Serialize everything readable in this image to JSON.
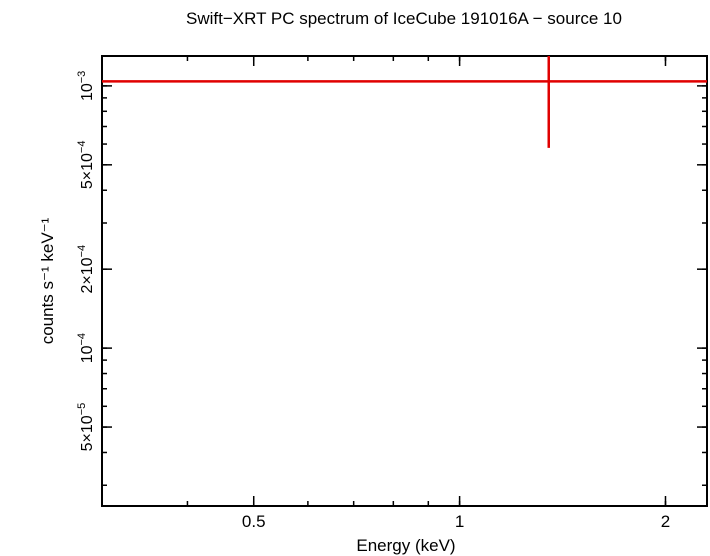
{
  "chart_data": {
    "type": "scatter",
    "title": "Swift−XRT PC spectrum of IceCube 191016A − source 10",
    "xlabel": "Energy (keV)",
    "ylabel": "counts s⁻¹ keV⁻¹",
    "x_scale": "log",
    "y_scale": "log",
    "xlim": [
      0.3,
      2.3
    ],
    "ylim": [
      2.5e-05,
      0.0013
    ],
    "x_ticks": [
      {
        "value": 0.5,
        "label": "0.5"
      },
      {
        "value": 1,
        "label": "1"
      },
      {
        "value": 2,
        "label": "2"
      }
    ],
    "y_ticks": [
      {
        "value": 5e-05,
        "mantissa": "5×10",
        "exponent": "−5"
      },
      {
        "value": 0.0001,
        "mantissa": "10",
        "exponent": "−4"
      },
      {
        "value": 0.0002,
        "mantissa": "2×10",
        "exponent": "−4"
      },
      {
        "value": 0.0005,
        "mantissa": "5×10",
        "exponent": "−4"
      },
      {
        "value": 0.001,
        "mantissa": "10",
        "exponent": "−3"
      }
    ],
    "series": [
      {
        "color": "#e00000",
        "points": [
          {
            "x": 1.35,
            "x_lo": 0.3,
            "x_hi": 2.3,
            "y": 0.00104,
            "y_lo": 0.00058,
            "y_hi": 0.0013
          }
        ]
      }
    ],
    "grid": false
  }
}
